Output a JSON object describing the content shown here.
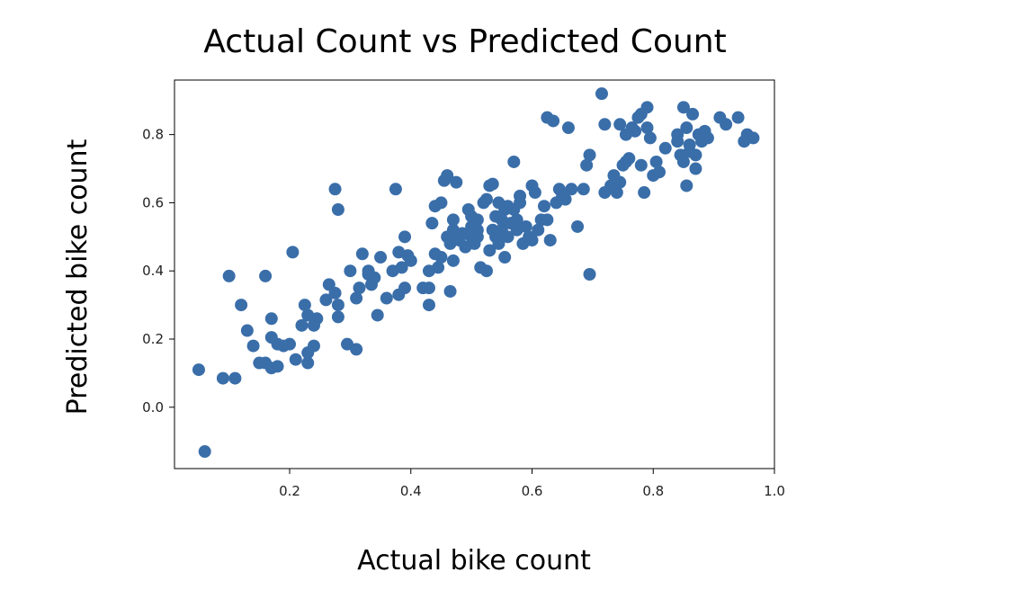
{
  "chart_data": {
    "type": "scatter",
    "title": "Actual Count vs Predicted Count",
    "xlabel": "Actual bike count",
    "ylabel": "Predicted bike count",
    "xlim": [
      0.01,
      1.0
    ],
    "ylim": [
      -0.18,
      0.96
    ],
    "xticks": [
      0.2,
      0.4,
      0.6,
      0.8,
      1.0
    ],
    "xtick_labels": [
      "0.2",
      "0.4",
      "0.6",
      "0.8",
      "1.0"
    ],
    "yticks": [
      0.0,
      0.2,
      0.4,
      0.6,
      0.8
    ],
    "ytick_labels": [
      "0.0",
      "0.2",
      "0.4",
      "0.6",
      "0.8"
    ],
    "grid": false,
    "marker_color": "#3a6ea9",
    "series": [
      {
        "points": [
          [
            0.05,
            0.11
          ],
          [
            0.06,
            -0.13
          ],
          [
            0.09,
            0.085
          ],
          [
            0.11,
            0.085
          ],
          [
            0.1,
            0.385
          ],
          [
            0.12,
            0.3
          ],
          [
            0.13,
            0.225
          ],
          [
            0.14,
            0.18
          ],
          [
            0.15,
            0.13
          ],
          [
            0.16,
            0.13
          ],
          [
            0.16,
            0.385
          ],
          [
            0.17,
            0.115
          ],
          [
            0.17,
            0.205
          ],
          [
            0.17,
            0.26
          ],
          [
            0.18,
            0.185
          ],
          [
            0.18,
            0.12
          ],
          [
            0.19,
            0.18
          ],
          [
            0.2,
            0.185
          ],
          [
            0.205,
            0.455
          ],
          [
            0.21,
            0.14
          ],
          [
            0.22,
            0.24
          ],
          [
            0.225,
            0.3
          ],
          [
            0.23,
            0.13
          ],
          [
            0.23,
            0.27
          ],
          [
            0.23,
            0.16
          ],
          [
            0.24,
            0.18
          ],
          [
            0.24,
            0.24
          ],
          [
            0.245,
            0.26
          ],
          [
            0.26,
            0.315
          ],
          [
            0.265,
            0.36
          ],
          [
            0.275,
            0.64
          ],
          [
            0.28,
            0.58
          ],
          [
            0.275,
            0.335
          ],
          [
            0.28,
            0.3
          ],
          [
            0.28,
            0.265
          ],
          [
            0.295,
            0.185
          ],
          [
            0.3,
            0.4
          ],
          [
            0.31,
            0.17
          ],
          [
            0.31,
            0.32
          ],
          [
            0.315,
            0.35
          ],
          [
            0.32,
            0.45
          ],
          [
            0.33,
            0.39
          ],
          [
            0.33,
            0.4
          ],
          [
            0.335,
            0.36
          ],
          [
            0.34,
            0.38
          ],
          [
            0.345,
            0.27
          ],
          [
            0.35,
            0.44
          ],
          [
            0.36,
            0.32
          ],
          [
            0.37,
            0.4
          ],
          [
            0.375,
            0.64
          ],
          [
            0.38,
            0.455
          ],
          [
            0.38,
            0.33
          ],
          [
            0.385,
            0.41
          ],
          [
            0.39,
            0.5
          ],
          [
            0.39,
            0.35
          ],
          [
            0.395,
            0.445
          ],
          [
            0.4,
            0.43
          ],
          [
            0.42,
            0.35
          ],
          [
            0.43,
            0.3
          ],
          [
            0.43,
            0.35
          ],
          [
            0.43,
            0.4
          ],
          [
            0.435,
            0.54
          ],
          [
            0.44,
            0.59
          ],
          [
            0.44,
            0.45
          ],
          [
            0.445,
            0.41
          ],
          [
            0.45,
            0.6
          ],
          [
            0.45,
            0.44
          ],
          [
            0.455,
            0.665
          ],
          [
            0.46,
            0.68
          ],
          [
            0.46,
            0.5
          ],
          [
            0.465,
            0.48
          ],
          [
            0.465,
            0.34
          ],
          [
            0.47,
            0.52
          ],
          [
            0.47,
            0.55
          ],
          [
            0.47,
            0.43
          ],
          [
            0.475,
            0.66
          ],
          [
            0.48,
            0.5
          ],
          [
            0.48,
            0.49
          ],
          [
            0.485,
            0.51
          ],
          [
            0.49,
            0.47
          ],
          [
            0.495,
            0.58
          ],
          [
            0.5,
            0.56
          ],
          [
            0.5,
            0.5
          ],
          [
            0.5,
            0.53
          ],
          [
            0.505,
            0.48
          ],
          [
            0.51,
            0.52
          ],
          [
            0.51,
            0.5
          ],
          [
            0.51,
            0.55
          ],
          [
            0.515,
            0.41
          ],
          [
            0.52,
            0.6
          ],
          [
            0.525,
            0.61
          ],
          [
            0.525,
            0.4
          ],
          [
            0.53,
            0.46
          ],
          [
            0.53,
            0.65
          ],
          [
            0.535,
            0.655
          ],
          [
            0.535,
            0.52
          ],
          [
            0.54,
            0.56
          ],
          [
            0.54,
            0.5
          ],
          [
            0.545,
            0.6
          ],
          [
            0.545,
            0.48
          ],
          [
            0.55,
            0.55
          ],
          [
            0.55,
            0.52
          ],
          [
            0.555,
            0.58
          ],
          [
            0.555,
            0.44
          ],
          [
            0.56,
            0.5
          ],
          [
            0.56,
            0.59
          ],
          [
            0.565,
            0.54
          ],
          [
            0.57,
            0.72
          ],
          [
            0.57,
            0.58
          ],
          [
            0.575,
            0.52
          ],
          [
            0.575,
            0.55
          ],
          [
            0.58,
            0.62
          ],
          [
            0.58,
            0.6
          ],
          [
            0.585,
            0.48
          ],
          [
            0.59,
            0.53
          ],
          [
            0.595,
            0.5
          ],
          [
            0.6,
            0.65
          ],
          [
            0.6,
            0.49
          ],
          [
            0.605,
            0.63
          ],
          [
            0.61,
            0.52
          ],
          [
            0.615,
            0.55
          ],
          [
            0.62,
            0.59
          ],
          [
            0.625,
            0.55
          ],
          [
            0.625,
            0.85
          ],
          [
            0.63,
            0.49
          ],
          [
            0.635,
            0.84
          ],
          [
            0.64,
            0.6
          ],
          [
            0.645,
            0.64
          ],
          [
            0.65,
            0.62
          ],
          [
            0.655,
            0.61
          ],
          [
            0.66,
            0.82
          ],
          [
            0.665,
            0.64
          ],
          [
            0.675,
            0.53
          ],
          [
            0.685,
            0.64
          ],
          [
            0.69,
            0.71
          ],
          [
            0.695,
            0.39
          ],
          [
            0.695,
            0.74
          ],
          [
            0.715,
            0.92
          ],
          [
            0.72,
            0.83
          ],
          [
            0.72,
            0.63
          ],
          [
            0.73,
            0.65
          ],
          [
            0.735,
            0.68
          ],
          [
            0.74,
            0.63
          ],
          [
            0.745,
            0.66
          ],
          [
            0.745,
            0.83
          ],
          [
            0.75,
            0.71
          ],
          [
            0.755,
            0.8
          ],
          [
            0.755,
            0.72
          ],
          [
            0.76,
            0.73
          ],
          [
            0.765,
            0.82
          ],
          [
            0.77,
            0.81
          ],
          [
            0.775,
            0.85
          ],
          [
            0.78,
            0.86
          ],
          [
            0.78,
            0.71
          ],
          [
            0.785,
            0.63
          ],
          [
            0.79,
            0.82
          ],
          [
            0.79,
            0.88
          ],
          [
            0.795,
            0.79
          ],
          [
            0.8,
            0.68
          ],
          [
            0.805,
            0.72
          ],
          [
            0.81,
            0.69
          ],
          [
            0.82,
            0.76
          ],
          [
            0.84,
            0.8
          ],
          [
            0.845,
            0.74
          ],
          [
            0.85,
            0.88
          ],
          [
            0.85,
            0.72
          ],
          [
            0.855,
            0.82
          ],
          [
            0.855,
            0.65
          ],
          [
            0.86,
            0.75
          ],
          [
            0.86,
            0.77
          ],
          [
            0.865,
            0.86
          ],
          [
            0.87,
            0.7
          ],
          [
            0.875,
            0.8
          ],
          [
            0.88,
            0.78
          ],
          [
            0.885,
            0.81
          ],
          [
            0.89,
            0.79
          ],
          [
            0.91,
            0.85
          ],
          [
            0.92,
            0.83
          ],
          [
            0.94,
            0.85
          ],
          [
            0.95,
            0.78
          ],
          [
            0.955,
            0.8
          ],
          [
            0.965,
            0.79
          ],
          [
            0.84,
            0.78
          ],
          [
            0.87,
            0.74
          ]
        ]
      }
    ]
  }
}
